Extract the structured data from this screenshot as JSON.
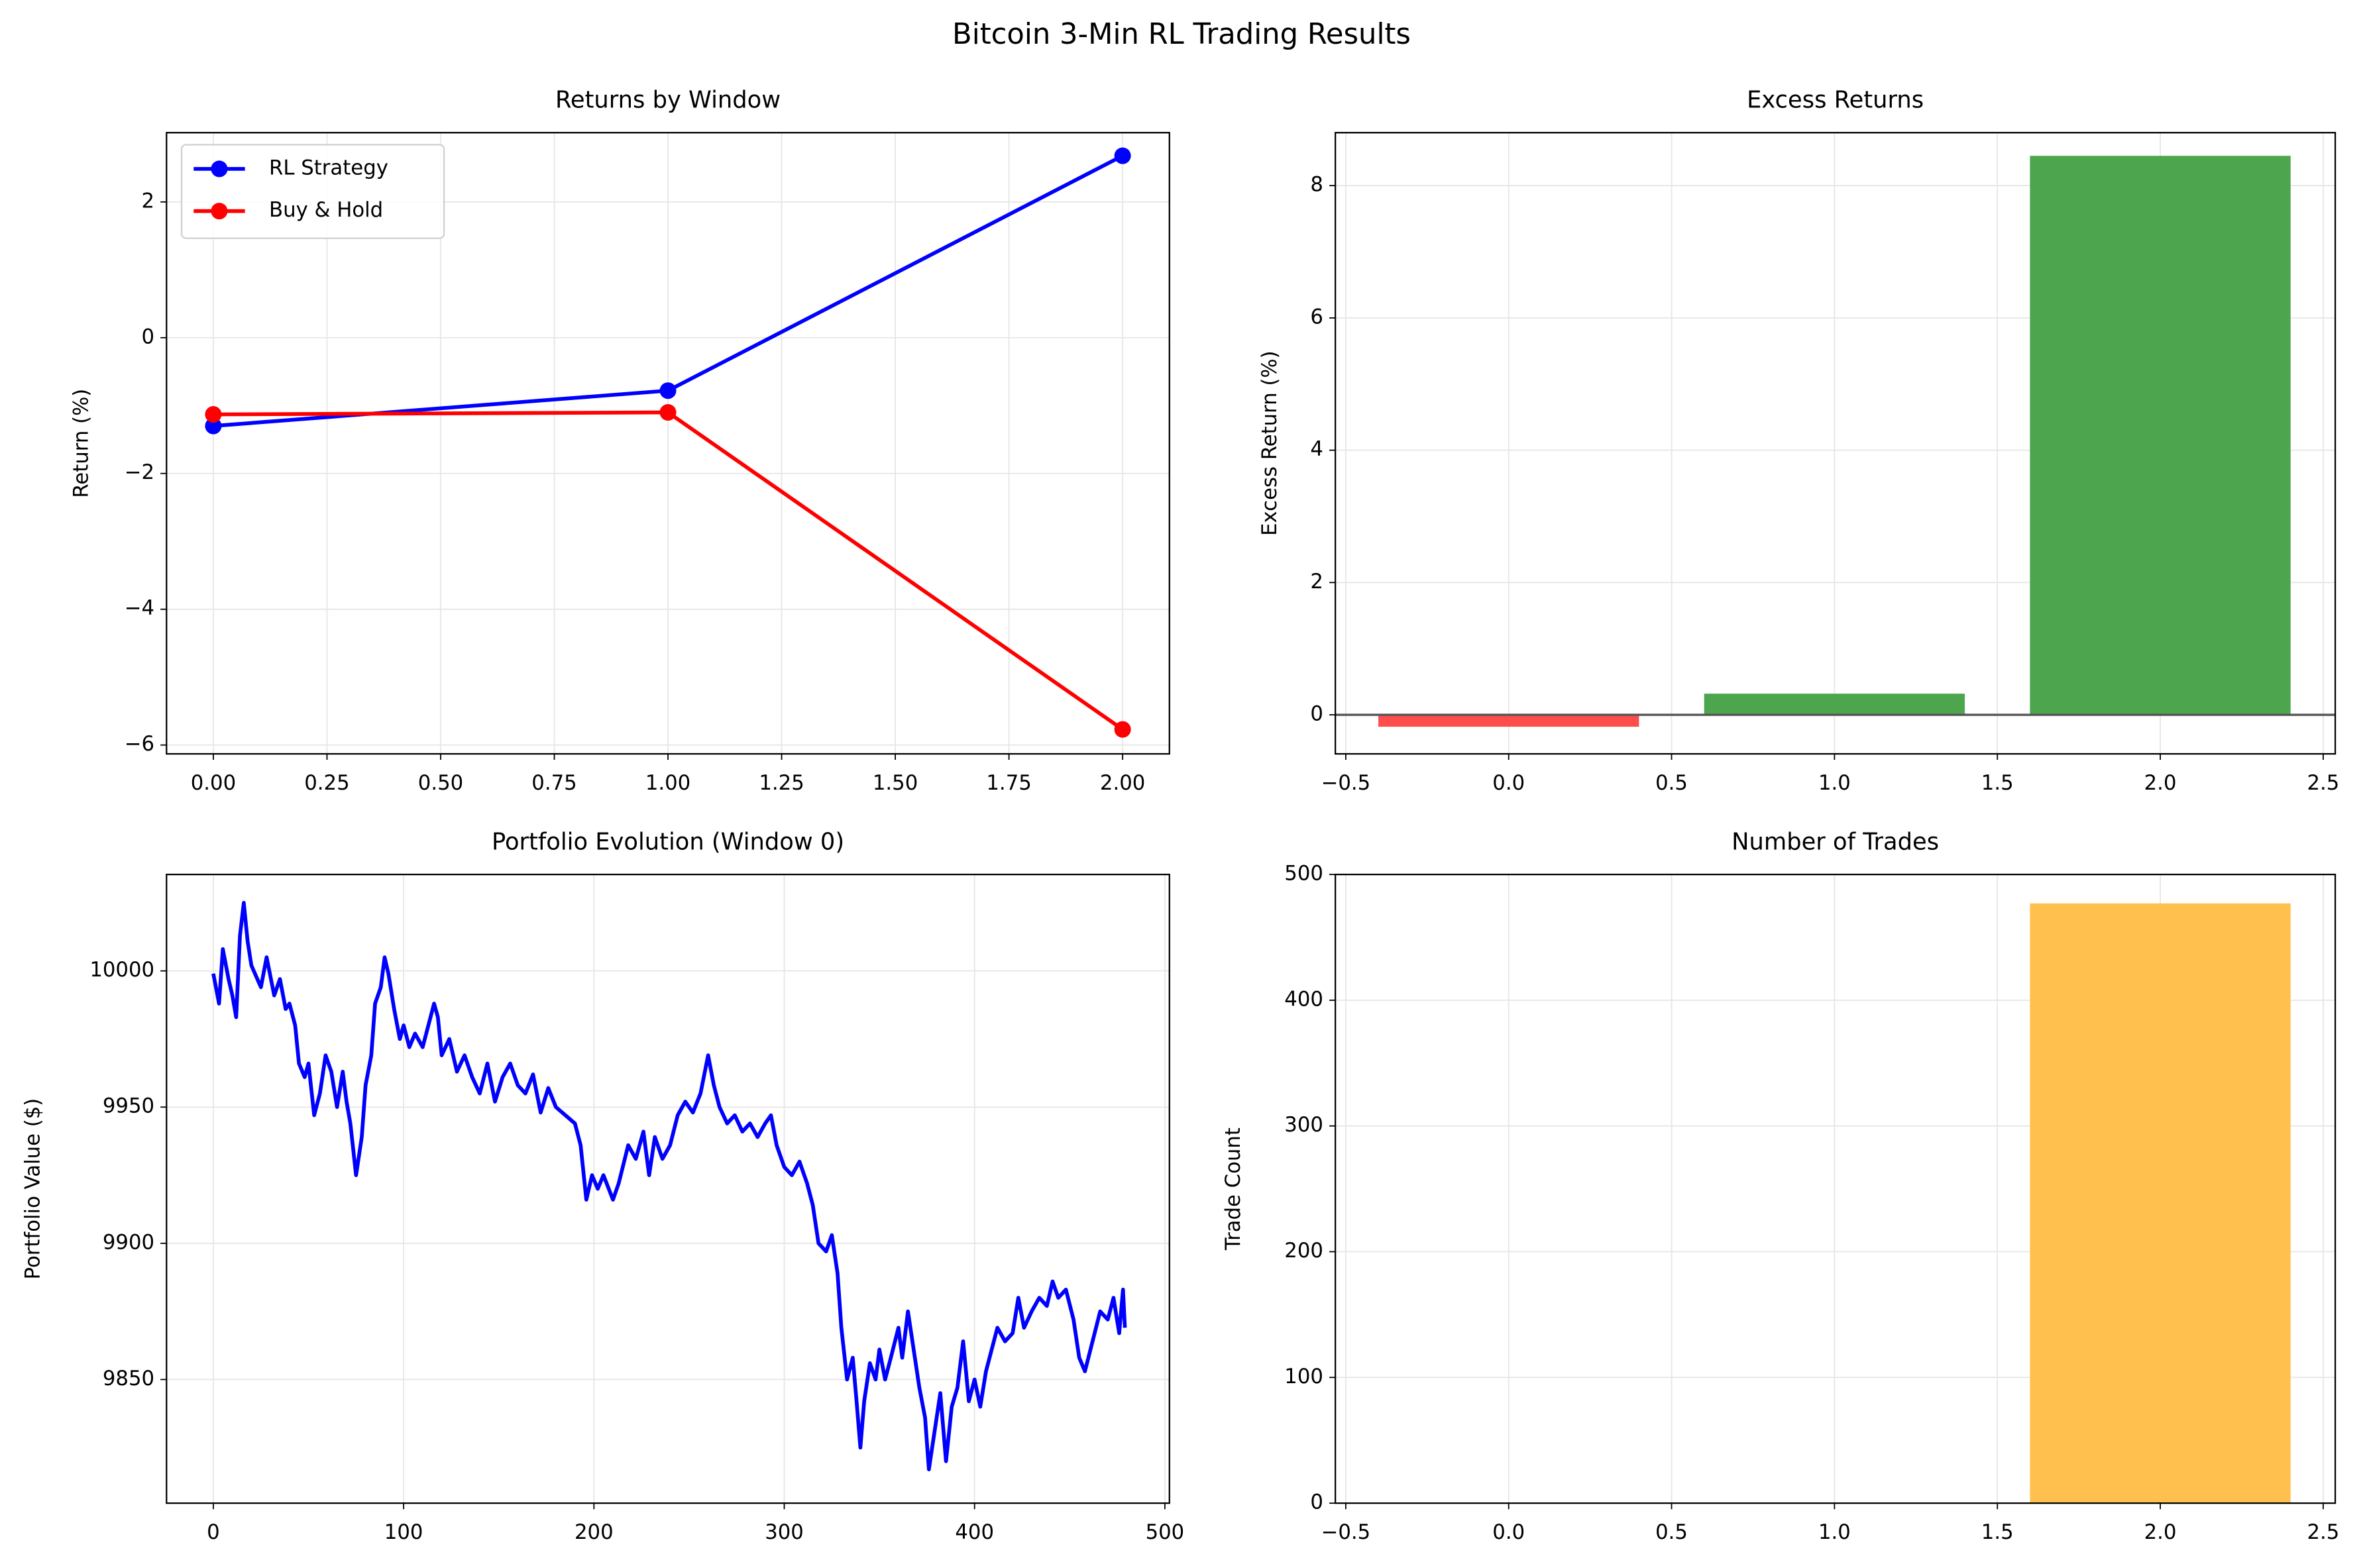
{
  "title": "Bitcoin 3-Min RL Trading Results",
  "chart_data": [
    {
      "type": "line",
      "title": "Returns by Window",
      "ylabel": "Return (%)",
      "markers": true,
      "grid": true,
      "legend": "upper-left",
      "x": [
        0,
        1,
        2
      ],
      "series": [
        {
          "name": "RL Strategy",
          "color": "#0000ff",
          "values": [
            -1.3,
            -0.78,
            2.68
          ]
        },
        {
          "name": "Buy & Hold",
          "color": "#ff0000",
          "values": [
            -1.13,
            -1.1,
            -5.77
          ]
        }
      ],
      "xlim": [
        -0.103,
        2.103
      ],
      "ylim": [
        -6.13,
        3.02
      ],
      "xticks": [
        {
          "value": 0,
          "label": "0.00"
        },
        {
          "value": 0.25,
          "label": "0.25"
        },
        {
          "value": 0.5,
          "label": "0.50"
        },
        {
          "value": 0.75,
          "label": "0.75"
        },
        {
          "value": 1,
          "label": "1.00"
        },
        {
          "value": 1.25,
          "label": "1.25"
        },
        {
          "value": 1.5,
          "label": "1.50"
        },
        {
          "value": 1.75,
          "label": "1.75"
        },
        {
          "value": 2,
          "label": "2.00"
        }
      ],
      "yticks": [
        {
          "value": -6,
          "label": "−6"
        },
        {
          "value": -4,
          "label": "−4"
        },
        {
          "value": -2,
          "label": "−2"
        },
        0,
        2
      ]
    },
    {
      "type": "bar",
      "title": "Excess Returns",
      "ylabel": "Excess Return (%)",
      "grid": true,
      "x": [
        0,
        1,
        2
      ],
      "values": [
        -0.18,
        0.32,
        8.45
      ],
      "colors": [
        "#ff4d4d",
        "#4da64d",
        "#4da64d"
      ],
      "hline": 0,
      "xlim": [
        -0.532,
        2.537
      ],
      "ylim": [
        -0.59,
        8.8
      ],
      "xticks": [
        {
          "value": -0.5,
          "label": "−0.5"
        },
        {
          "value": 0,
          "label": "0.0"
        },
        {
          "value": 0.5,
          "label": "0.5"
        },
        {
          "value": 1,
          "label": "1.0"
        },
        {
          "value": 1.5,
          "label": "1.5"
        },
        {
          "value": 2,
          "label": "2.0"
        },
        {
          "value": 2.5,
          "label": "2.5"
        }
      ],
      "yticks": [
        0,
        2,
        4,
        6,
        8
      ]
    },
    {
      "type": "line",
      "title": "Portfolio Evolution (Window 0)",
      "ylabel": "Portfolio Value ($)",
      "markers": false,
      "grid": true,
      "x": [
        0,
        3,
        5,
        8,
        10,
        12,
        14,
        16,
        18,
        20,
        25,
        28,
        32,
        35,
        38,
        40,
        43,
        45,
        48,
        50,
        53,
        56,
        59,
        62,
        65,
        68,
        70,
        72,
        75,
        78,
        80,
        83,
        85,
        88,
        90,
        92,
        95,
        98,
        100,
        103,
        106,
        110,
        113,
        116,
        118,
        120,
        124,
        128,
        132,
        136,
        140,
        144,
        148,
        152,
        156,
        160,
        164,
        168,
        172,
        176,
        180,
        185,
        190,
        193,
        196,
        199,
        202,
        205,
        210,
        213,
        218,
        222,
        226,
        229,
        232,
        236,
        240,
        244,
        248,
        252,
        256,
        260,
        263,
        266,
        270,
        274,
        278,
        282,
        286,
        290,
        293,
        296,
        300,
        304,
        308,
        312,
        315,
        318,
        322,
        325,
        328,
        330,
        333,
        336,
        338,
        340,
        342,
        345,
        348,
        350,
        353,
        356,
        360,
        362,
        365,
        368,
        371,
        374,
        376,
        379,
        382,
        385,
        388,
        391,
        394,
        397,
        400,
        403,
        406,
        409,
        412,
        416,
        420,
        423,
        426,
        430,
        434,
        438,
        441,
        444,
        448,
        452,
        455,
        458,
        462,
        466,
        470,
        473,
        476,
        478,
        479
      ],
      "series": [
        {
          "name": "Portfolio",
          "color": "#0000ff",
          "values": [
            9999,
            9988,
            10008,
            9997,
            9991,
            9983,
            10013,
            10025,
            10011,
            10002,
            9994,
            10005,
            9991,
            9997,
            9986,
            9988,
            9980,
            9966,
            9961,
            9966,
            9947,
            9955,
            9969,
            9963,
            9950,
            9963,
            9952,
            9944,
            9925,
            9939,
            9958,
            9969,
            9988,
            9994,
            10005,
            9999,
            9986,
            9975,
            9980,
            9972,
            9977,
            9972,
            9980,
            9988,
            9983,
            9969,
            9975,
            9963,
            9969,
            9961,
            9955,
            9966,
            9952,
            9961,
            9966,
            9958,
            9955,
            9962,
            9948,
            9957,
            9950,
            9947,
            9944,
            9936,
            9916,
            9925,
            9920,
            9925,
            9916,
            9922,
            9936,
            9931,
            9941,
            9925,
            9939,
            9931,
            9936,
            9947,
            9952,
            9948,
            9955,
            9969,
            9958,
            9950,
            9944,
            9947,
            9941,
            9944,
            9939,
            9944,
            9947,
            9936,
            9928,
            9925,
            9930,
            9922,
            9914,
            9900,
            9897,
            9903,
            9889,
            9869,
            9850,
            9858,
            9842,
            9825,
            9842,
            9856,
            9850,
            9861,
            9850,
            9858,
            9869,
            9858,
            9875,
            9861,
            9847,
            9836,
            9817,
            9831,
            9845,
            9820,
            9840,
            9847,
            9864,
            9842,
            9850,
            9840,
            9853,
            9861,
            9869,
            9864,
            9867,
            9880,
            9869,
            9875,
            9880,
            9877,
            9886,
            9880,
            9883,
            9872,
            9858,
            9853,
            9864,
            9875,
            9872,
            9880,
            9867,
            9883,
            9869
          ]
        }
      ],
      "xlim": [
        -24.6,
        502.4
      ],
      "ylim": [
        9804.6,
        10035.4
      ],
      "xticks": [
        0,
        100,
        200,
        300,
        400,
        500
      ],
      "yticks": [
        9850,
        9900,
        9950,
        10000
      ]
    },
    {
      "type": "bar",
      "title": "Number of Trades",
      "ylabel": "Trade Count",
      "grid": true,
      "x": [
        0,
        1,
        2
      ],
      "values": [
        0,
        0,
        477
      ],
      "colors": [
        "#ffc04d",
        "#ffc04d",
        "#ffc04d"
      ],
      "xlim": [
        -0.532,
        2.537
      ],
      "ylim": [
        0,
        500
      ],
      "xticks": [
        {
          "value": -0.5,
          "label": "−0.5"
        },
        {
          "value": 0,
          "label": "0.0"
        },
        {
          "value": 0.5,
          "label": "0.5"
        },
        {
          "value": 1,
          "label": "1.0"
        },
        {
          "value": 1.5,
          "label": "1.5"
        },
        {
          "value": 2,
          "label": "2.0"
        },
        {
          "value": 2.5,
          "label": "2.5"
        }
      ],
      "yticks": [
        0,
        100,
        200,
        300,
        400,
        500
      ]
    }
  ]
}
